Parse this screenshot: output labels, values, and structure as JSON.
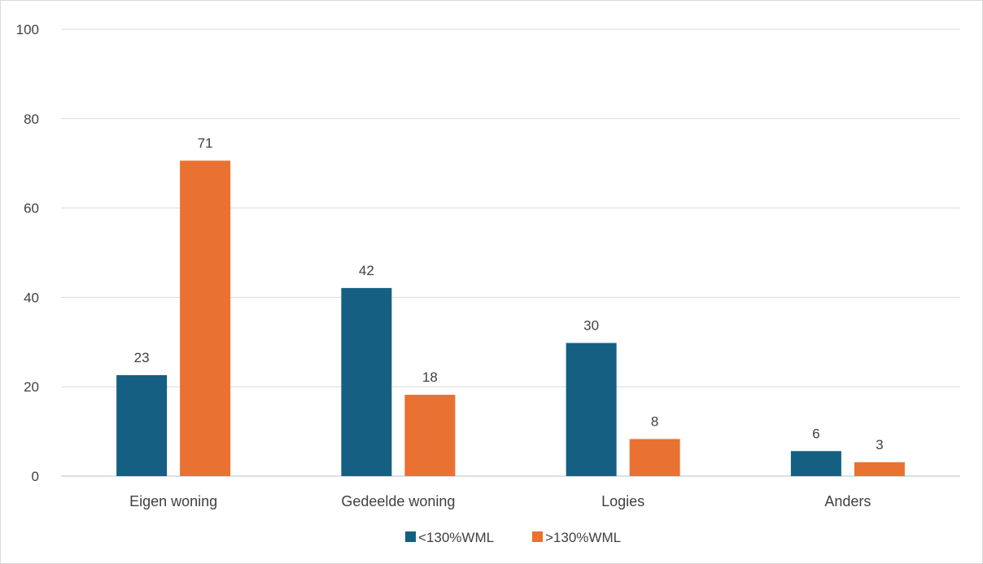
{
  "chart_data": {
    "type": "bar",
    "title": "",
    "xlabel": "",
    "ylabel": "",
    "categories": [
      "Eigen woning",
      "Gedeelde woning",
      "Logies",
      "Anders"
    ],
    "series": [
      {
        "name": "<130%WML",
        "color": "#156082",
        "values": [
          22.6,
          42.1,
          29.8,
          5.6
        ],
        "labels": [
          "23",
          "42",
          "30",
          "6"
        ]
      },
      {
        "name": ">130%WML",
        "color": "#E97132",
        "values": [
          70.6,
          18.2,
          8.3,
          3.1
        ],
        "labels": [
          "71",
          "18",
          "8",
          "3"
        ]
      }
    ],
    "ylim": [
      0,
      100
    ],
    "yticks": [
      0,
      20,
      40,
      60,
      80,
      100
    ],
    "grid": true,
    "legend_position": "bottom"
  }
}
